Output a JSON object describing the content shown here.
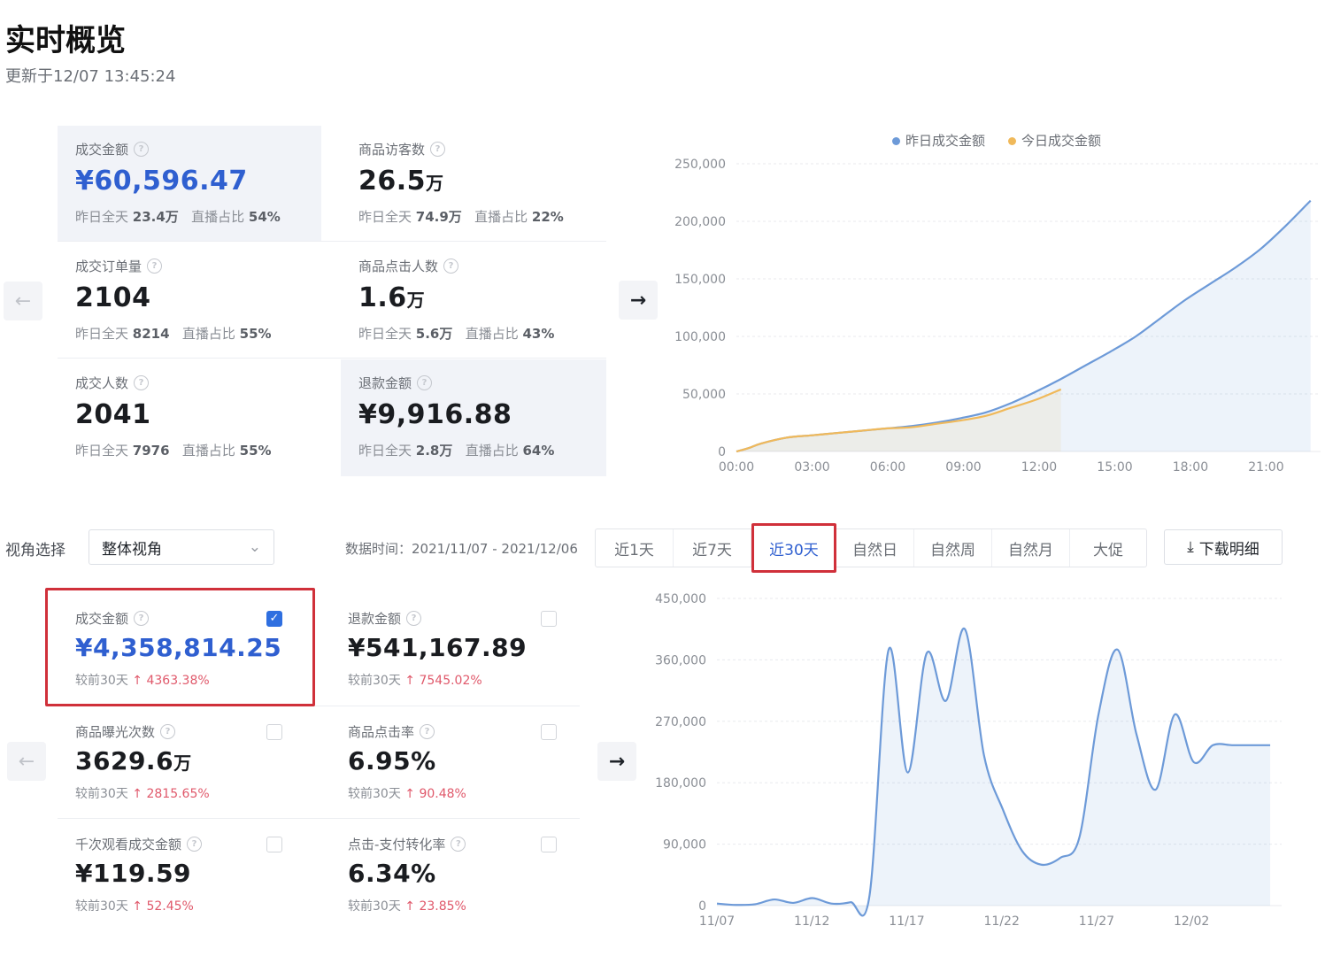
{
  "header": {
    "title": "实时概览",
    "updated": "更新于12/07 13:45:24"
  },
  "realtime_cards": [
    {
      "label": "成交金额",
      "value": "¥60,596.47",
      "unit": "",
      "sub_prefix": "昨日全天",
      "sub_value": "23.4万",
      "sub_mid": "直播占比",
      "sub_pct": "54%"
    },
    {
      "label": "商品访客数",
      "value": "26.5",
      "unit": "万",
      "sub_prefix": "昨日全天",
      "sub_value": "74.9万",
      "sub_mid": "直播占比",
      "sub_pct": "22%"
    },
    {
      "label": "成交订单量",
      "value": "2104",
      "unit": "",
      "sub_prefix": "昨日全天",
      "sub_value": "8214",
      "sub_mid": "直播占比",
      "sub_pct": "55%"
    },
    {
      "label": "商品点击人数",
      "value": "1.6",
      "unit": "万",
      "sub_prefix": "昨日全天",
      "sub_value": "5.6万",
      "sub_mid": "直播占比",
      "sub_pct": "43%"
    },
    {
      "label": "成交人数",
      "value": "2041",
      "unit": "",
      "sub_prefix": "昨日全天",
      "sub_value": "7976",
      "sub_mid": "直播占比",
      "sub_pct": "55%"
    },
    {
      "label": "退款金额",
      "value": "¥9,916.88",
      "unit": "",
      "sub_prefix": "昨日全天",
      "sub_value": "2.8万",
      "sub_mid": "直播占比",
      "sub_pct": "64%"
    }
  ],
  "icons": {
    "prev": "arrow-left-icon",
    "next": "arrow-right-icon",
    "help": "question-circle-icon",
    "chevron": "chevron-down-icon",
    "download": "download-icon",
    "check": "checkbox-checked-icon"
  },
  "glyphs": {
    "prev": "←",
    "next": "→",
    "help": "?",
    "chevron": "⌄",
    "download": "⤓",
    "check": "✓"
  },
  "colors": {
    "accent": "#2f5fd0",
    "yesterday_line": "#6d9ad8",
    "today_line": "#f0b95a",
    "highlight_frame": "#d0303a",
    "increase": "#e0596b"
  },
  "filters": {
    "view_label": "视角选择",
    "view_value": "整体视角",
    "data_range": "数据时间：2021/11/07 - 2021/12/06",
    "tabs": [
      "近1天",
      "近7天",
      "近30天",
      "自然日",
      "自然周",
      "自然月",
      "大促"
    ],
    "active_tab": "近30天",
    "download_label": "下载明细"
  },
  "period_cards": [
    {
      "label": "成交金额",
      "value": "¥4,358,814.25",
      "unit": "",
      "cmp": "较前30天",
      "change": "4363.38%",
      "checked": true
    },
    {
      "label": "退款金额",
      "value": "¥541,167.89",
      "unit": "",
      "cmp": "较前30天",
      "change": "7545.02%",
      "checked": false
    },
    {
      "label": "商品曝光次数",
      "value": "3629.6",
      "unit": "万",
      "cmp": "较前30天",
      "change": "2815.65%",
      "checked": false
    },
    {
      "label": "商品点击率",
      "value": "6.95%",
      "unit": "",
      "cmp": "较前30天",
      "change": "90.48%",
      "checked": false
    },
    {
      "label": "千次观看成交金额",
      "value": "¥119.59",
      "unit": "",
      "cmp": "较前30天",
      "change": "52.45%",
      "checked": false
    },
    {
      "label": "点击-支付转化率",
      "value": "6.34%",
      "unit": "",
      "cmp": "较前30天",
      "change": "23.85%",
      "checked": false
    }
  ],
  "chart_data": [
    {
      "type": "area",
      "legend_position": "top",
      "grid": true,
      "x_ticks": [
        "00:00",
        "03:00",
        "06:00",
        "09:00",
        "12:00",
        "15:00",
        "18:00",
        "21:00"
      ],
      "y_ticks": [
        "0",
        "50,000",
        "100,000",
        "150,000",
        "200,000",
        "250,000"
      ],
      "ylim": [
        0,
        250000
      ],
      "x_unit_note_hours": true,
      "series": [
        {
          "name": "昨日成交金额",
          "x": [
            0,
            0.5,
            1,
            2,
            3,
            4,
            5,
            6,
            7,
            8,
            9,
            10,
            11,
            12,
            13,
            14,
            15,
            16,
            17,
            18,
            19,
            20,
            21,
            22,
            23
          ],
          "values": [
            0,
            3000,
            7000,
            12000,
            14000,
            16000,
            18000,
            20000,
            22000,
            25000,
            29000,
            34000,
            42000,
            52000,
            63000,
            75000,
            87000,
            100000,
            116000,
            132000,
            146000,
            160000,
            176000,
            196000,
            218000
          ]
        },
        {
          "name": "今日成交金额",
          "x": [
            0,
            0.5,
            1,
            2,
            3,
            4,
            5,
            6,
            7,
            8,
            9,
            10,
            11,
            12,
            13
          ],
          "values": [
            0,
            3000,
            7000,
            12000,
            14000,
            16000,
            18000,
            20000,
            21000,
            24000,
            27000,
            31000,
            38000,
            45000,
            54000
          ]
        }
      ]
    },
    {
      "type": "area",
      "grid": true,
      "x_ticks": [
        "11/07",
        "11/12",
        "11/17",
        "11/22",
        "11/27",
        "12/02"
      ],
      "y_ticks": [
        "0",
        "90,000",
        "180,000",
        "270,000",
        "360,000",
        "450,000"
      ],
      "ylim": [
        0,
        450000
      ],
      "series": [
        {
          "name": "成交金额",
          "x": [
            0,
            1,
            2,
            3,
            4,
            5,
            6,
            7,
            8,
            9,
            10,
            11,
            12,
            13,
            14,
            15,
            16,
            17,
            18,
            19,
            20,
            21,
            22,
            23,
            24,
            25,
            26,
            27,
            28,
            29
          ],
          "values": [
            3000,
            1000,
            2000,
            9000,
            4000,
            11000,
            3000,
            5000,
            15000,
            375000,
            195000,
            370000,
            300000,
            405000,
            220000,
            140000,
            80000,
            60000,
            70000,
            100000,
            280000,
            375000,
            250000,
            170000,
            280000,
            210000,
            235000,
            235000,
            235000,
            235000
          ]
        }
      ]
    }
  ]
}
